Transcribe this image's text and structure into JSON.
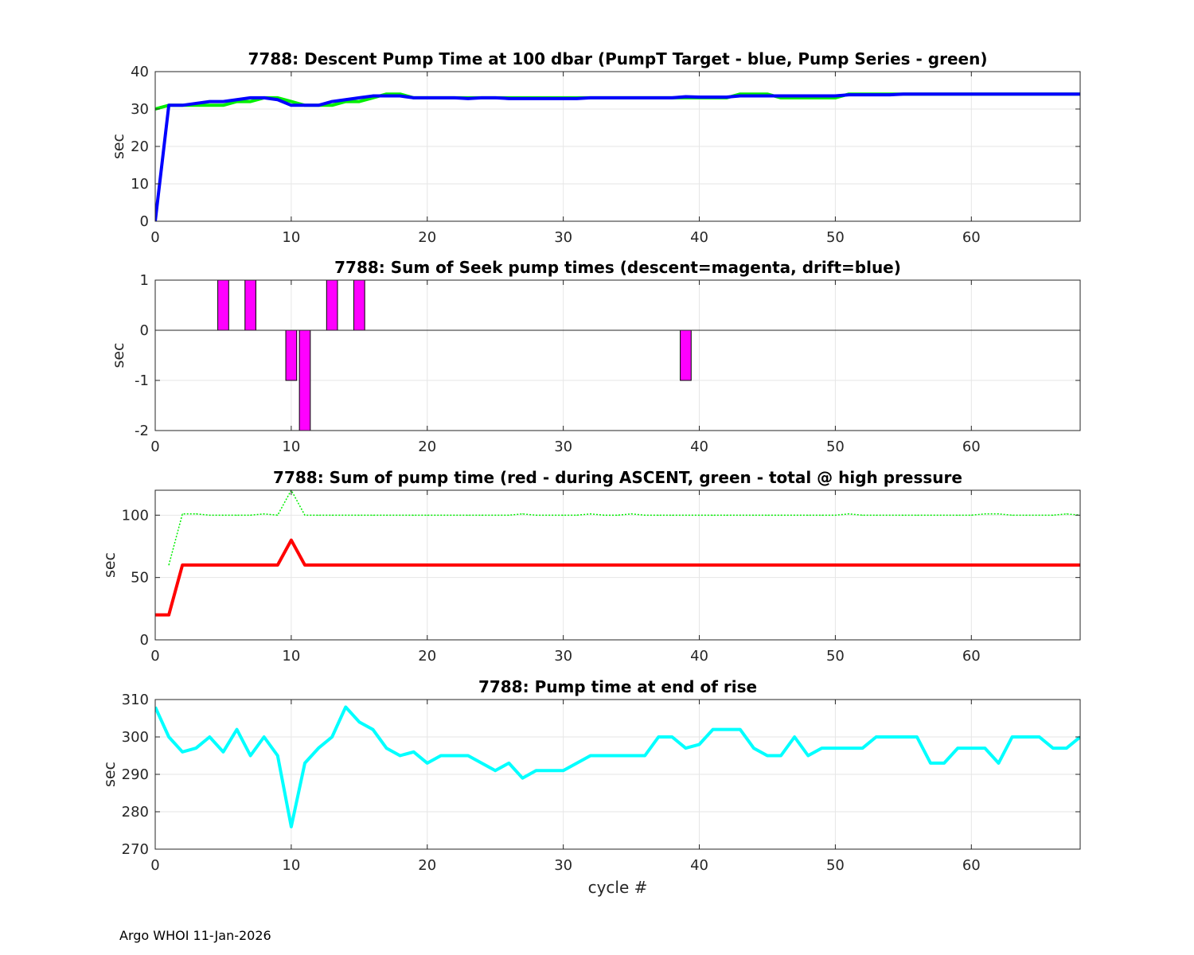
{
  "footer": "Argo WHOI 11-Jan-2026",
  "colors": {
    "green": "#00ee00",
    "blue": "#0000ff",
    "magenta": "#ff00ff",
    "red": "#ff0000",
    "cyan": "#00ffff",
    "grid": "#e6e6e6",
    "axis": "#262626"
  },
  "chart_data": [
    {
      "type": "line",
      "title": "7788: Descent Pump Time at 100 dbar (PumpT Target - blue, Pump Series - green)",
      "xlabel": "",
      "ylabel": "sec",
      "xlim": [
        0,
        68
      ],
      "ylim": [
        0,
        40
      ],
      "xticks": [
        0,
        10,
        20,
        30,
        40,
        50,
        60
      ],
      "yticks": [
        0,
        10,
        20,
        30,
        40
      ],
      "grid": true,
      "series": [
        {
          "color": "green",
          "x": [
            0,
            1,
            2,
            3,
            4,
            5,
            6,
            7,
            8,
            9,
            10,
            11,
            12,
            13,
            14,
            15,
            16,
            17,
            18,
            19,
            20,
            21,
            22,
            23,
            24,
            25,
            26,
            27,
            28,
            29,
            30,
            31,
            32,
            33,
            34,
            35,
            36,
            37,
            38,
            39,
            40,
            41,
            42,
            43,
            44,
            45,
            46,
            47,
            48,
            49,
            50,
            51,
            52,
            53,
            54,
            55,
            56,
            57,
            58,
            59,
            60,
            61,
            62,
            63,
            64,
            65,
            66,
            67,
            68
          ],
          "values": [
            30,
            31,
            31,
            31,
            31,
            31,
            32,
            32,
            33,
            33,
            32,
            31,
            31,
            31,
            32,
            32,
            33,
            34,
            34,
            33,
            33,
            33,
            33,
            33,
            33,
            33,
            33,
            33,
            33,
            33,
            33,
            33,
            33,
            33,
            33,
            33,
            33,
            33,
            33,
            33,
            33,
            33,
            33,
            34,
            34,
            34,
            33,
            33,
            33,
            33,
            33,
            34,
            34,
            34,
            34,
            34,
            34,
            34,
            34,
            34,
            34,
            34,
            34,
            34,
            34,
            34,
            34,
            34,
            34
          ]
        },
        {
          "color": "blue",
          "x": [
            0,
            1,
            2,
            3,
            4,
            5,
            6,
            7,
            8,
            9,
            10,
            11,
            12,
            13,
            14,
            15,
            16,
            17,
            18,
            19,
            20,
            21,
            22,
            23,
            24,
            25,
            26,
            27,
            28,
            29,
            30,
            31,
            32,
            33,
            34,
            35,
            36,
            37,
            38,
            39,
            40,
            41,
            42,
            43,
            44,
            45,
            46,
            47,
            48,
            49,
            50,
            51,
            52,
            53,
            54,
            55,
            56,
            57,
            58,
            59,
            60,
            61,
            62,
            63,
            64,
            65,
            66,
            67,
            68
          ],
          "values": [
            0,
            31,
            31,
            31.5,
            32,
            32,
            32.5,
            33,
            33,
            32.5,
            31,
            31,
            31,
            32,
            32.5,
            33,
            33.5,
            33.5,
            33.5,
            33,
            33,
            33,
            33,
            32.8,
            33,
            33,
            32.8,
            32.8,
            32.8,
            32.8,
            32.8,
            32.8,
            33,
            33,
            33,
            33,
            33,
            33,
            33,
            33.3,
            33.2,
            33.2,
            33.2,
            33.5,
            33.5,
            33.5,
            33.5,
            33.5,
            33.5,
            33.5,
            33.5,
            33.8,
            33.8,
            33.8,
            33.8,
            34,
            34,
            34,
            34,
            34,
            34,
            34,
            34,
            34,
            34,
            34,
            34,
            34,
            34
          ]
        }
      ]
    },
    {
      "type": "bar",
      "title": "7788: Sum of Seek pump times (descent=magenta, drift=blue)",
      "xlabel": "",
      "ylabel": "sec",
      "xlim": [
        0,
        68
      ],
      "ylim": [
        -2,
        1
      ],
      "xticks": [
        0,
        10,
        20,
        30,
        40,
        50,
        60
      ],
      "yticks": [
        -2,
        -1,
        0,
        1
      ],
      "grid": true,
      "series": [
        {
          "color": "magenta",
          "x": [
            5,
            7,
            10,
            11,
            13,
            15,
            39
          ],
          "values": [
            1,
            1,
            -1,
            -2,
            1,
            1,
            -1
          ]
        }
      ]
    },
    {
      "type": "line",
      "title": "7788: Sum of pump time (red - during ASCENT, green - total @ high pressure",
      "xlabel": "",
      "ylabel": "sec",
      "xlim": [
        0,
        68
      ],
      "ylim": [
        0,
        120
      ],
      "xticks": [
        0,
        10,
        20,
        30,
        40,
        50,
        60
      ],
      "yticks": [
        0,
        50,
        100
      ],
      "grid": true,
      "series": [
        {
          "color": "green",
          "style": "dotted",
          "x": [
            1,
            2,
            3,
            4,
            5,
            6,
            7,
            8,
            9,
            10,
            11,
            12,
            13,
            14,
            15,
            16,
            17,
            18,
            19,
            20,
            21,
            22,
            23,
            24,
            25,
            26,
            27,
            28,
            29,
            30,
            31,
            32,
            33,
            34,
            35,
            36,
            37,
            38,
            39,
            40,
            41,
            42,
            43,
            44,
            45,
            46,
            47,
            48,
            49,
            50,
            51,
            52,
            53,
            54,
            55,
            56,
            57,
            58,
            59,
            60,
            61,
            62,
            63,
            64,
            65,
            66,
            67,
            68
          ],
          "values": [
            60,
            101,
            101,
            100,
            100,
            100,
            100,
            101,
            100,
            120,
            100,
            100,
            100,
            100,
            100,
            100,
            100,
            100,
            100,
            100,
            100,
            100,
            100,
            100,
            100,
            100,
            101,
            100,
            100,
            100,
            100,
            101,
            100,
            100,
            101,
            100,
            100,
            100,
            100,
            100,
            100,
            100,
            100,
            100,
            100,
            100,
            100,
            100,
            100,
            100,
            101,
            100,
            100,
            100,
            100,
            100,
            100,
            100,
            100,
            100,
            101,
            101,
            100,
            100,
            100,
            100,
            101,
            100
          ]
        },
        {
          "color": "red",
          "x": [
            0,
            1,
            2,
            3,
            4,
            5,
            6,
            7,
            8,
            9,
            10,
            11,
            12,
            13,
            14,
            15,
            16,
            17,
            18,
            19,
            20,
            21,
            22,
            23,
            24,
            25,
            26,
            27,
            28,
            29,
            30,
            31,
            32,
            33,
            34,
            35,
            36,
            37,
            38,
            39,
            40,
            41,
            42,
            43,
            44,
            45,
            46,
            47,
            48,
            49,
            50,
            51,
            52,
            53,
            54,
            55,
            56,
            57,
            58,
            59,
            60,
            61,
            62,
            63,
            64,
            65,
            66,
            67,
            68
          ],
          "values": [
            20,
            20,
            60,
            60,
            60,
            60,
            60,
            60,
            60,
            60,
            80,
            60,
            60,
            60,
            60,
            60,
            60,
            60,
            60,
            60,
            60,
            60,
            60,
            60,
            60,
            60,
            60,
            60,
            60,
            60,
            60,
            60,
            60,
            60,
            60,
            60,
            60,
            60,
            60,
            60,
            60,
            60,
            60,
            60,
            60,
            60,
            60,
            60,
            60,
            60,
            60,
            60,
            60,
            60,
            60,
            60,
            60,
            60,
            60,
            60,
            60,
            60,
            60,
            60,
            60,
            60,
            60,
            60,
            60
          ]
        }
      ]
    },
    {
      "type": "line",
      "title": "7788: Pump time at end of rise",
      "xlabel": "cycle #",
      "ylabel": "sec",
      "xlim": [
        0,
        68
      ],
      "ylim": [
        270,
        310
      ],
      "xticks": [
        0,
        10,
        20,
        30,
        40,
        50,
        60
      ],
      "yticks": [
        270,
        280,
        290,
        300,
        310
      ],
      "grid": true,
      "series": [
        {
          "color": "cyan",
          "x": [
            0,
            1,
            2,
            3,
            4,
            5,
            6,
            7,
            8,
            9,
            10,
            11,
            12,
            13,
            14,
            15,
            16,
            17,
            18,
            19,
            20,
            21,
            22,
            23,
            24,
            25,
            26,
            27,
            28,
            29,
            30,
            31,
            32,
            33,
            34,
            35,
            36,
            37,
            38,
            39,
            40,
            41,
            42,
            43,
            44,
            45,
            46,
            47,
            48,
            49,
            50,
            51,
            52,
            53,
            54,
            55,
            56,
            57,
            58,
            59,
            60,
            61,
            62,
            63,
            64,
            65,
            66,
            67,
            68
          ],
          "values": [
            308,
            300,
            296,
            297,
            300,
            296,
            302,
            295,
            300,
            295,
            276,
            293,
            297,
            300,
            308,
            304,
            302,
            297,
            295,
            296,
            293,
            295,
            295,
            295,
            293,
            291,
            293,
            289,
            291,
            291,
            291,
            293,
            295,
            295,
            295,
            295,
            295,
            300,
            300,
            297,
            298,
            302,
            302,
            302,
            297,
            295,
            295,
            300,
            295,
            297,
            297,
            297,
            297,
            300,
            300,
            300,
            300,
            293,
            293,
            297,
            297,
            297,
            293,
            300,
            300,
            300,
            297,
            297,
            300
          ]
        }
      ]
    }
  ]
}
